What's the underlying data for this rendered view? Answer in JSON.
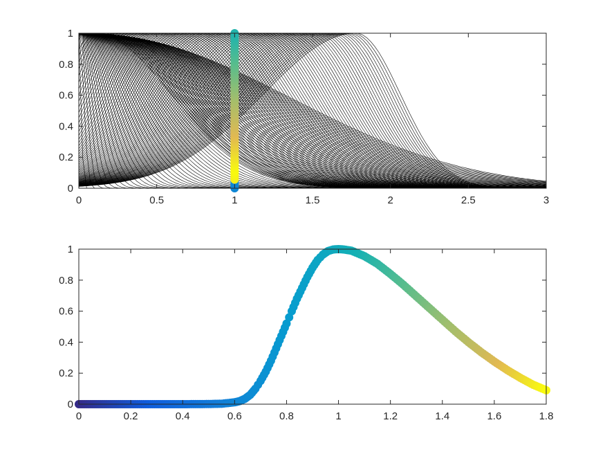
{
  "chart_data": [
    {
      "type": "line",
      "title": "",
      "xlabel": "",
      "ylabel": "",
      "xlim": [
        0,
        3
      ],
      "ylim": [
        0,
        1
      ],
      "xticks": [
        "0",
        "0.5",
        "1",
        "1.5",
        "2",
        "2.5",
        "3"
      ],
      "yticks": [
        "0",
        "0.2",
        "0.4",
        "0.6",
        "0.8",
        "1"
      ],
      "grid": false,
      "legend": "none",
      "curve_family": {
        "count": 160,
        "color": "#000000",
        "description_parameter": "p",
        "p_range": [
          0,
          1.8
        ],
        "curve": "y = exp(-(p*x/0.6)^6) for p < 1, y = exp(-((x - 0.8p)/(1.2p - 0.9))^6) mirrored family peaking near x=1.8",
        "samples_x_range": [
          0,
          3
        ]
      },
      "highlight_series": {
        "type": "scatter",
        "x_constant": 1,
        "y_from": 0,
        "y_to": 1,
        "colormap": "parula",
        "marker_radius_note": "thick colored dots along x = 1"
      }
    },
    {
      "type": "scatter",
      "title": "",
      "xlabel": "",
      "ylabel": "",
      "xlim": [
        0,
        1.8
      ],
      "ylim": [
        0,
        1
      ],
      "xticks": [
        "0",
        "0.2",
        "0.4",
        "0.6",
        "0.8",
        "1",
        "1.2",
        "1.4",
        "1.6",
        "1.8"
      ],
      "yticks": [
        "0",
        "0.2",
        "0.4",
        "0.6",
        "0.8",
        "1"
      ],
      "grid": false,
      "legend": "none",
      "colormap": "parula",
      "x": [
        0,
        0.1,
        0.2,
        0.3,
        0.4,
        0.5,
        0.55,
        0.6,
        0.62,
        0.64,
        0.66,
        0.68,
        0.7,
        0.72,
        0.74,
        0.76,
        0.78,
        0.8,
        0.82,
        0.84,
        0.86,
        0.88,
        0.9,
        0.92,
        0.94,
        0.96,
        0.98,
        1.0,
        1.02,
        1.05,
        1.1,
        1.15,
        1.2,
        1.25,
        1.3,
        1.35,
        1.4,
        1.45,
        1.5,
        1.55,
        1.6,
        1.65,
        1.7,
        1.75,
        1.8
      ],
      "y": [
        0,
        0,
        0,
        0,
        0,
        0.001,
        0.003,
        0.012,
        0.02,
        0.035,
        0.06,
        0.1,
        0.15,
        0.21,
        0.28,
        0.36,
        0.44,
        0.52,
        0.6,
        0.68,
        0.75,
        0.82,
        0.88,
        0.93,
        0.965,
        0.988,
        0.998,
        1.0,
        0.998,
        0.99,
        0.955,
        0.905,
        0.84,
        0.77,
        0.695,
        0.62,
        0.545,
        0.47,
        0.4,
        0.335,
        0.275,
        0.22,
        0.17,
        0.125,
        0.09
      ]
    }
  ]
}
